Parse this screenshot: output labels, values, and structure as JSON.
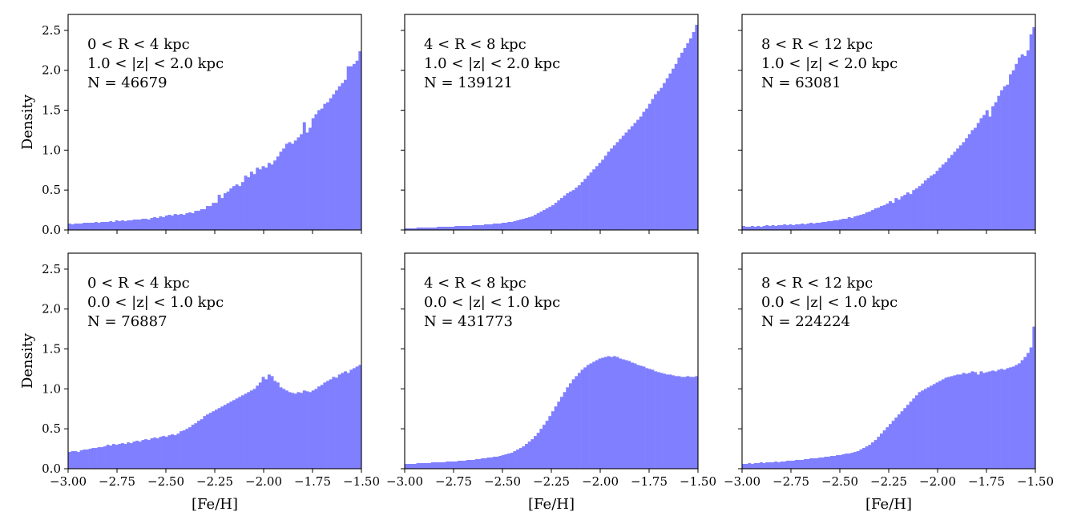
{
  "chart_data": [
    {
      "type": "bar",
      "annotations": [
        "0 < R < 4 kpc",
        "1.0 < |z| < 2.0 kpc",
        "N = 46679"
      ],
      "xlabel": "",
      "ylabel": "Density",
      "xlim": [
        -3.0,
        -1.5
      ],
      "ylim": [
        0,
        2.7
      ],
      "xticks": [
        -3.0,
        -2.75,
        -2.5,
        -2.25,
        -2.0,
        -1.75,
        -1.5
      ],
      "xtick_labels": [],
      "yticks": [
        0.0,
        0.5,
        1.0,
        1.5,
        2.0,
        2.5
      ],
      "ytick_labels": [
        "0.0",
        "0.5",
        "1.0",
        "1.5",
        "2.0",
        "2.5"
      ],
      "bins": {
        "start": -3.0,
        "width": 0.015,
        "count": 100
      },
      "values": [
        0.08,
        0.07,
        0.08,
        0.08,
        0.08,
        0.09,
        0.09,
        0.09,
        0.09,
        0.1,
        0.09,
        0.1,
        0.1,
        0.1,
        0.11,
        0.1,
        0.12,
        0.11,
        0.12,
        0.11,
        0.12,
        0.12,
        0.13,
        0.13,
        0.13,
        0.14,
        0.14,
        0.13,
        0.15,
        0.16,
        0.15,
        0.17,
        0.16,
        0.18,
        0.19,
        0.18,
        0.2,
        0.19,
        0.2,
        0.19,
        0.21,
        0.22,
        0.21,
        0.24,
        0.24,
        0.26,
        0.26,
        0.3,
        0.3,
        0.34,
        0.34,
        0.44,
        0.4,
        0.46,
        0.48,
        0.52,
        0.55,
        0.57,
        0.55,
        0.6,
        0.68,
        0.66,
        0.73,
        0.7,
        0.78,
        0.76,
        0.8,
        0.78,
        0.84,
        0.82,
        0.87,
        0.92,
        0.98,
        1.02,
        1.08,
        1.1,
        1.08,
        1.12,
        1.16,
        1.2,
        1.35,
        1.22,
        1.28,
        1.4,
        1.45,
        1.5,
        1.52,
        1.58,
        1.6,
        1.65,
        1.7,
        1.75,
        1.8,
        1.84,
        1.88,
        2.05,
        2.05,
        2.08,
        2.12,
        2.24
      ]
    },
    {
      "type": "bar",
      "annotations": [
        "4 < R < 8 kpc",
        "1.0 < |z| < 2.0 kpc",
        "N = 139121"
      ],
      "xlabel": "",
      "ylabel": "",
      "xlim": [
        -3.0,
        -1.5
      ],
      "ylim": [
        0,
        2.7
      ],
      "xticks": [
        -3.0,
        -2.75,
        -2.5,
        -2.25,
        -2.0,
        -1.75,
        -1.5
      ],
      "xtick_labels": [],
      "yticks": [
        0.0,
        0.5,
        1.0,
        1.5,
        2.0,
        2.5
      ],
      "ytick_labels": [],
      "bins": {
        "start": -3.0,
        "width": 0.015,
        "count": 100
      },
      "values": [
        0.02,
        0.02,
        0.02,
        0.02,
        0.03,
        0.03,
        0.03,
        0.03,
        0.03,
        0.03,
        0.03,
        0.04,
        0.04,
        0.04,
        0.04,
        0.04,
        0.04,
        0.05,
        0.05,
        0.05,
        0.05,
        0.05,
        0.05,
        0.06,
        0.06,
        0.06,
        0.06,
        0.07,
        0.07,
        0.07,
        0.08,
        0.08,
        0.08,
        0.09,
        0.09,
        0.1,
        0.1,
        0.11,
        0.12,
        0.13,
        0.14,
        0.15,
        0.16,
        0.17,
        0.19,
        0.21,
        0.23,
        0.25,
        0.27,
        0.29,
        0.31,
        0.34,
        0.37,
        0.4,
        0.43,
        0.46,
        0.48,
        0.5,
        0.53,
        0.56,
        0.6,
        0.64,
        0.68,
        0.72,
        0.76,
        0.8,
        0.84,
        0.88,
        0.93,
        0.98,
        1.02,
        1.06,
        1.1,
        1.14,
        1.18,
        1.22,
        1.26,
        1.3,
        1.34,
        1.38,
        1.42,
        1.48,
        1.52,
        1.58,
        1.64,
        1.7,
        1.74,
        1.78,
        1.84,
        1.9,
        1.96,
        2.02,
        2.08,
        2.16,
        2.22,
        2.28,
        2.34,
        2.4,
        2.48,
        2.57
      ]
    },
    {
      "type": "bar",
      "annotations": [
        "8 < R < 12 kpc",
        "1.0 < |z| < 2.0 kpc",
        "N = 63081"
      ],
      "xlabel": "",
      "ylabel": "",
      "xlim": [
        -3.0,
        -1.5
      ],
      "ylim": [
        0,
        2.7
      ],
      "xticks": [
        -3.0,
        -2.75,
        -2.5,
        -2.25,
        -2.0,
        -1.75,
        -1.5
      ],
      "xtick_labels": [],
      "yticks": [
        0.0,
        0.5,
        1.0,
        1.5,
        2.0,
        2.5
      ],
      "ytick_labels": [],
      "bins": {
        "start": -3.0,
        "width": 0.015,
        "count": 100
      },
      "values": [
        0.05,
        0.04,
        0.04,
        0.05,
        0.04,
        0.05,
        0.04,
        0.05,
        0.06,
        0.05,
        0.06,
        0.05,
        0.06,
        0.06,
        0.07,
        0.06,
        0.07,
        0.06,
        0.07,
        0.07,
        0.08,
        0.07,
        0.08,
        0.09,
        0.08,
        0.09,
        0.09,
        0.1,
        0.1,
        0.11,
        0.11,
        0.12,
        0.12,
        0.13,
        0.14,
        0.14,
        0.16,
        0.15,
        0.17,
        0.18,
        0.19,
        0.2,
        0.22,
        0.23,
        0.25,
        0.27,
        0.28,
        0.3,
        0.31,
        0.33,
        0.36,
        0.34,
        0.4,
        0.38,
        0.42,
        0.44,
        0.47,
        0.45,
        0.5,
        0.52,
        0.55,
        0.58,
        0.62,
        0.65,
        0.68,
        0.7,
        0.74,
        0.78,
        0.82,
        0.85,
        0.9,
        0.94,
        0.98,
        1.02,
        1.06,
        1.1,
        1.15,
        1.2,
        1.25,
        1.28,
        1.34,
        1.4,
        1.44,
        1.5,
        1.42,
        1.55,
        1.6,
        1.68,
        1.75,
        1.8,
        1.82,
        1.95,
        2.0,
        2.08,
        2.16,
        2.2,
        2.18,
        2.25,
        2.45,
        2.54
      ]
    },
    {
      "type": "bar",
      "annotations": [
        "0 < R < 4 kpc",
        "0.0 < |z| < 1.0 kpc",
        "N = 76887"
      ],
      "xlabel": "[Fe/H]",
      "ylabel": "Density",
      "xlim": [
        -3.0,
        -1.5
      ],
      "ylim": [
        0,
        2.7
      ],
      "xticks": [
        -3.0,
        -2.75,
        -2.5,
        -2.25,
        -2.0,
        -1.75,
        -1.5
      ],
      "xtick_labels": [
        "−3.00",
        "−2.75",
        "−2.50",
        "−2.25",
        "−2.00",
        "−1.75",
        "−1.50"
      ],
      "yticks": [
        0.0,
        0.5,
        1.0,
        1.5,
        2.0,
        2.5
      ],
      "ytick_labels": [
        "0.0",
        "0.5",
        "1.0",
        "1.5",
        "2.0",
        "2.5"
      ],
      "bins": {
        "start": -3.0,
        "width": 0.015,
        "count": 100
      },
      "values": [
        0.21,
        0.22,
        0.22,
        0.21,
        0.23,
        0.24,
        0.24,
        0.25,
        0.26,
        0.26,
        0.27,
        0.27,
        0.28,
        0.3,
        0.29,
        0.31,
        0.3,
        0.31,
        0.32,
        0.31,
        0.33,
        0.32,
        0.34,
        0.35,
        0.34,
        0.36,
        0.37,
        0.36,
        0.38,
        0.39,
        0.38,
        0.4,
        0.41,
        0.4,
        0.42,
        0.43,
        0.42,
        0.44,
        0.47,
        0.48,
        0.5,
        0.52,
        0.55,
        0.57,
        0.6,
        0.62,
        0.66,
        0.68,
        0.7,
        0.72,
        0.74,
        0.76,
        0.78,
        0.8,
        0.82,
        0.84,
        0.86,
        0.88,
        0.9,
        0.92,
        0.94,
        0.96,
        0.98,
        1.0,
        1.04,
        1.08,
        1.15,
        1.12,
        1.18,
        1.16,
        1.1,
        1.08,
        1.02,
        1.0,
        0.98,
        0.96,
        0.95,
        0.94,
        0.96,
        0.95,
        0.98,
        0.97,
        0.96,
        0.98,
        1.0,
        1.03,
        1.05,
        1.08,
        1.1,
        1.12,
        1.15,
        1.14,
        1.18,
        1.2,
        1.22,
        1.2,
        1.24,
        1.26,
        1.28,
        1.3
      ]
    },
    {
      "type": "bar",
      "annotations": [
        "4 < R < 8 kpc",
        "0.0 < |z| < 1.0 kpc",
        "N = 431773"
      ],
      "xlabel": "[Fe/H]",
      "ylabel": "",
      "xlim": [
        -3.0,
        -1.5
      ],
      "ylim": [
        0,
        2.7
      ],
      "xticks": [
        -3.0,
        -2.75,
        -2.5,
        -2.25,
        -2.0,
        -1.75,
        -1.5
      ],
      "xtick_labels": [
        "−3.00",
        "−2.75",
        "−2.50",
        "−2.25",
        "−2.00",
        "−1.75",
        "−1.50"
      ],
      "yticks": [
        0.0,
        0.5,
        1.0,
        1.5,
        2.0,
        2.5
      ],
      "ytick_labels": [],
      "bins": {
        "start": -3.0,
        "width": 0.015,
        "count": 100
      },
      "values": [
        0.06,
        0.06,
        0.06,
        0.06,
        0.07,
        0.07,
        0.07,
        0.07,
        0.07,
        0.08,
        0.08,
        0.08,
        0.08,
        0.08,
        0.09,
        0.09,
        0.09,
        0.09,
        0.1,
        0.1,
        0.1,
        0.11,
        0.11,
        0.11,
        0.12,
        0.12,
        0.13,
        0.13,
        0.14,
        0.14,
        0.15,
        0.15,
        0.16,
        0.17,
        0.18,
        0.19,
        0.2,
        0.22,
        0.24,
        0.26,
        0.28,
        0.31,
        0.34,
        0.37,
        0.41,
        0.45,
        0.5,
        0.55,
        0.6,
        0.66,
        0.72,
        0.78,
        0.84,
        0.9,
        0.96,
        1.02,
        1.07,
        1.12,
        1.16,
        1.2,
        1.24,
        1.27,
        1.3,
        1.32,
        1.34,
        1.36,
        1.38,
        1.39,
        1.4,
        1.41,
        1.4,
        1.41,
        1.4,
        1.38,
        1.37,
        1.36,
        1.35,
        1.33,
        1.32,
        1.3,
        1.29,
        1.28,
        1.26,
        1.25,
        1.24,
        1.22,
        1.21,
        1.2,
        1.19,
        1.18,
        1.18,
        1.17,
        1.16,
        1.16,
        1.15,
        1.15,
        1.16,
        1.15,
        1.15,
        1.16
      ]
    },
    {
      "type": "bar",
      "annotations": [
        "8 < R < 12 kpc",
        "0.0 < |z| < 1.0 kpc",
        "N = 224224"
      ],
      "xlabel": "[Fe/H]",
      "ylabel": "",
      "xlim": [
        -3.0,
        -1.5
      ],
      "ylim": [
        0,
        2.7
      ],
      "xticks": [
        -3.0,
        -2.75,
        -2.5,
        -2.25,
        -2.0,
        -1.75,
        -1.5
      ],
      "xtick_labels": [
        "−3.00",
        "−2.75",
        "−2.50",
        "−2.25",
        "−2.00",
        "−1.75",
        "−1.50"
      ],
      "yticks": [
        0.0,
        0.5,
        1.0,
        1.5,
        2.0,
        2.5
      ],
      "ytick_labels": [],
      "bins": {
        "start": -3.0,
        "width": 0.015,
        "count": 100
      },
      "values": [
        0.06,
        0.06,
        0.07,
        0.06,
        0.07,
        0.07,
        0.08,
        0.07,
        0.08,
        0.08,
        0.08,
        0.09,
        0.08,
        0.09,
        0.09,
        0.1,
        0.1,
        0.1,
        0.11,
        0.11,
        0.11,
        0.12,
        0.12,
        0.13,
        0.13,
        0.13,
        0.14,
        0.14,
        0.15,
        0.15,
        0.16,
        0.16,
        0.17,
        0.17,
        0.18,
        0.19,
        0.19,
        0.2,
        0.21,
        0.22,
        0.24,
        0.26,
        0.28,
        0.3,
        0.33,
        0.36,
        0.4,
        0.44,
        0.48,
        0.52,
        0.56,
        0.6,
        0.64,
        0.68,
        0.72,
        0.76,
        0.8,
        0.84,
        0.88,
        0.92,
        0.96,
        0.98,
        1.0,
        1.02,
        1.04,
        1.06,
        1.08,
        1.1,
        1.12,
        1.14,
        1.15,
        1.16,
        1.17,
        1.18,
        1.18,
        1.2,
        1.19,
        1.2,
        1.22,
        1.21,
        1.18,
        1.22,
        1.2,
        1.21,
        1.22,
        1.23,
        1.22,
        1.24,
        1.25,
        1.24,
        1.26,
        1.27,
        1.28,
        1.3,
        1.32,
        1.36,
        1.4,
        1.45,
        1.52,
        1.78
      ]
    }
  ]
}
